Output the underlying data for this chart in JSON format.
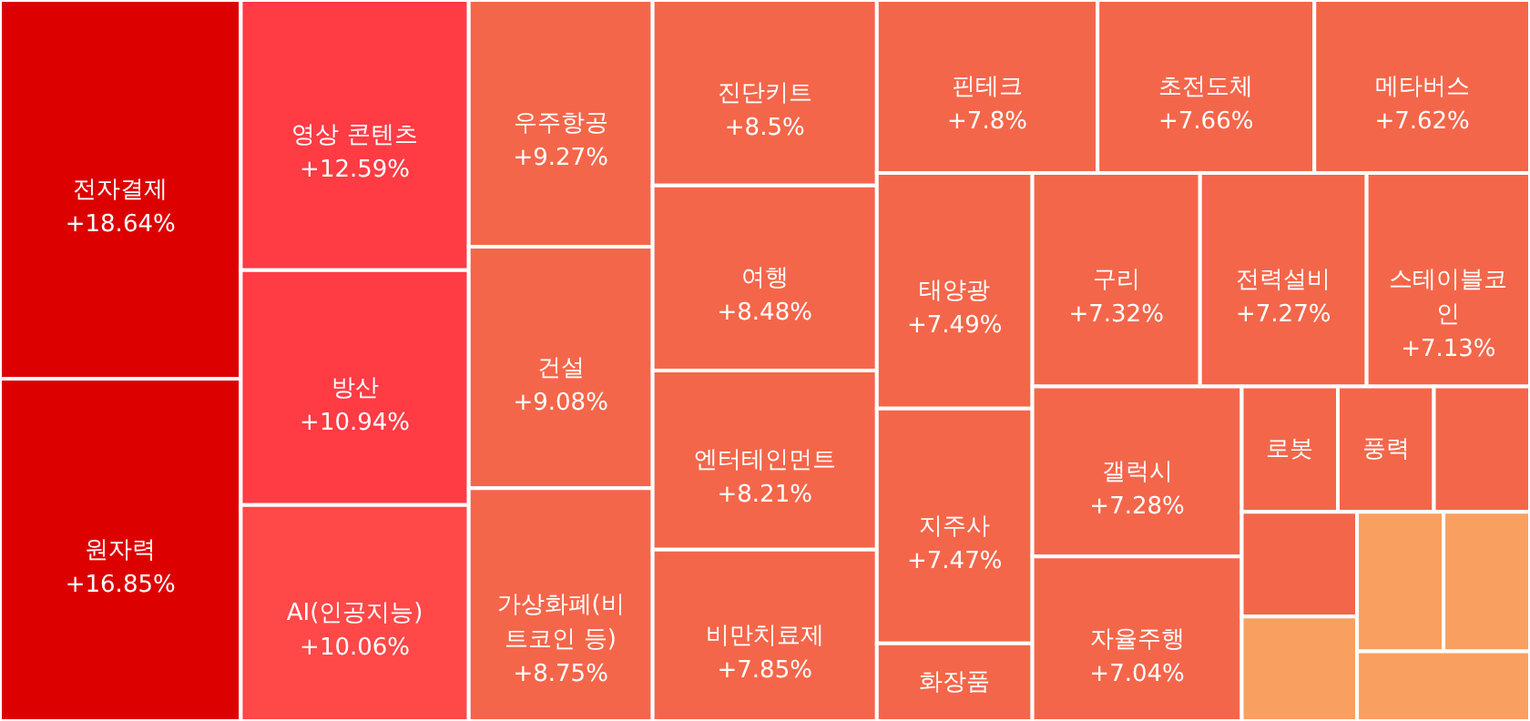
{
  "chart_data": {
    "type": "other",
    "categories": [
      "전자결제",
      "원자력",
      "영상 콘텐츠",
      "방산",
      "AI(인공지능)",
      "우주항공",
      "건설",
      "가상화폐(비트코인 등)",
      "진단키트",
      "여행",
      "엔터테인먼트",
      "비만치료제",
      "핀테크",
      "초전도체",
      "메타버스",
      "태양광",
      "지주사",
      "화장품",
      "구리",
      "전력설비",
      "스테이블코인",
      "갤럭시",
      "자율주행",
      "로봇",
      "풍력",
      null,
      null,
      null,
      null,
      null,
      null
    ],
    "values": [
      18.64,
      16.85,
      12.59,
      10.94,
      10.06,
      9.27,
      9.08,
      8.75,
      8.5,
      8.48,
      8.21,
      7.85,
      7.8,
      7.66,
      7.62,
      7.49,
      7.47,
      null,
      7.32,
      7.27,
      7.13,
      7.28,
      7.04,
      null,
      null,
      null,
      null,
      null,
      null,
      null,
      null
    ],
    "value_labels": [
      "+18.64%",
      "+16.85%",
      "+12.59%",
      "+10.94%",
      "+10.06%",
      "+9.27%",
      "+9.08%",
      "+8.75%",
      "+8.5%",
      "+8.48%",
      "+8.21%",
      "+7.85%",
      "+7.8%",
      "+7.66%",
      "+7.62%",
      "+7.49%",
      "+7.47%",
      null,
      "+7.32%",
      "+7.27%",
      "+7.13%",
      "+7.28%",
      "+7.04%",
      null,
      null,
      null,
      null,
      null,
      null,
      null,
      null
    ],
    "colors": [
      "#dd0000",
      "#dd0000",
      "#ff3b44",
      "#ff3b44",
      "#ff4848",
      "#f4664a",
      "#f4664a",
      "#f4664a",
      "#f4664a",
      "#f4664a",
      "#f4664a",
      "#f4664a",
      "#f4664a",
      "#f4664a",
      "#f4664a",
      "#f4664a",
      "#f4664a",
      "#f4664a",
      "#f4664a",
      "#f4664a",
      "#f4664a",
      "#f4664a",
      "#f4664a",
      "#f4664a",
      "#f4664a",
      "#f4664a",
      "#f4664a",
      "#f9a060",
      "#f9a060",
      "#f9a060",
      "#f9a060"
    ]
  }
}
